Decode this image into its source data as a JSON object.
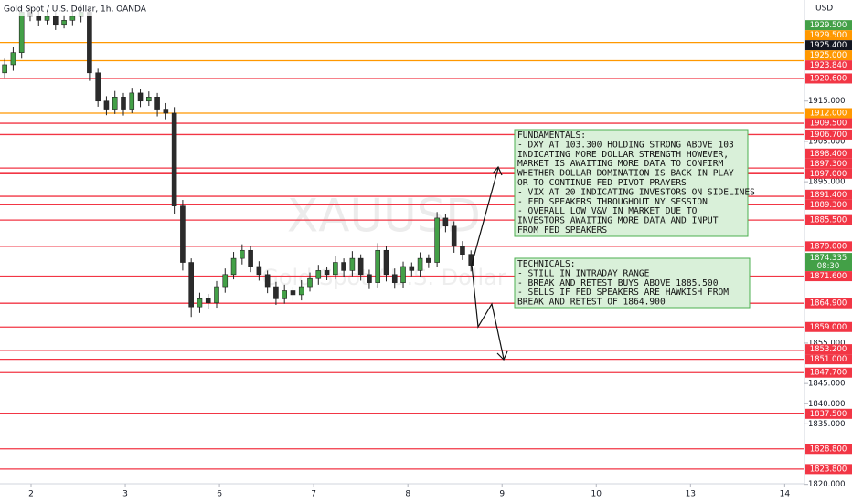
{
  "chart_data": {
    "type": "candlestick",
    "title": "Gold Spot / U.S. Dollar, 1h, OANDA",
    "currency": "USD",
    "watermark": "XAUUSD",
    "watermark_subtitle": "Gold Spot / U.S. Dollar",
    "up_color": "#43a047",
    "down_color": "#2b2b2b",
    "xlim": [
      -0.33,
      8.21
    ],
    "xticks": [
      {
        "value": 0,
        "label": "2"
      },
      {
        "value": 1,
        "label": "3"
      },
      {
        "value": 2,
        "label": "6"
      },
      {
        "value": 3,
        "label": "7"
      },
      {
        "value": 4,
        "label": "8"
      },
      {
        "value": 5,
        "label": "9"
      },
      {
        "value": 6,
        "label": "10"
      },
      {
        "value": 7,
        "label": "13"
      },
      {
        "value": 8,
        "label": "14"
      }
    ],
    "ylim": [
      1820.15,
      1940.05
    ],
    "yticks": [
      {
        "value": 1915,
        "label": "1915.000"
      },
      {
        "value": 1905,
        "label": "1905.000"
      },
      {
        "value": 1895,
        "label": "1895.000"
      },
      {
        "value": 1855,
        "label": "1855.000"
      },
      {
        "value": 1845,
        "label": "1845.000"
      },
      {
        "value": 1840,
        "label": "1840.000"
      },
      {
        "value": 1835,
        "label": "1835.000"
      },
      {
        "value": 1820,
        "label": "1820.000"
      }
    ],
    "x": [
      -0.28,
      -0.19,
      -0.1,
      -0.01,
      0.08,
      0.17,
      0.26,
      0.35,
      0.44,
      0.53,
      0.62,
      0.71,
      0.8,
      0.89,
      0.98,
      1.07,
      1.16,
      1.25,
      1.34,
      1.43,
      1.52,
      1.61,
      1.7,
      1.79,
      1.88,
      1.97,
      2.06,
      2.15,
      2.24,
      2.33,
      2.42,
      2.51,
      2.6,
      2.69,
      2.78,
      2.87,
      2.96,
      3.05,
      3.14,
      3.23,
      3.32,
      3.41,
      3.5,
      3.59,
      3.68,
      3.77,
      3.86,
      3.95,
      4.04,
      4.13,
      4.22,
      4.31,
      4.4,
      4.49,
      4.58,
      4.67
    ],
    "open": [
      1922,
      1924,
      1927,
      1937,
      1936,
      1935,
      1936,
      1934,
      1935,
      1936,
      1937,
      1922,
      1915,
      1913,
      1916,
      1913,
      1917,
      1915,
      1916,
      1913,
      1912,
      1889,
      1875,
      1864,
      1866,
      1865,
      1869,
      1872,
      1876,
      1878,
      1874,
      1872,
      1869,
      1866,
      1868,
      1867,
      1869,
      1871,
      1873,
      1872,
      1875,
      1873,
      1876,
      1872,
      1870,
      1878,
      1872,
      1870,
      1874,
      1873,
      1876,
      1875,
      1886,
      1884,
      1879,
      1877
    ],
    "high": [
      1925.5,
      1928.5,
      1938.5,
      1938.5,
      1937.2,
      1937.5,
      1937,
      1936.4,
      1937.3,
      1939,
      1938,
      1923,
      1916.2,
      1917.5,
      1917,
      1918.3,
      1918,
      1917.4,
      1917,
      1914.5,
      1913.5,
      1890.5,
      1876,
      1867.5,
      1867.2,
      1870.4,
      1873.5,
      1877.6,
      1879.5,
      1879,
      1875.3,
      1873,
      1870.2,
      1869.5,
      1869,
      1870.6,
      1872.5,
      1874.4,
      1874,
      1876.5,
      1876,
      1877.8,
      1877,
      1873.2,
      1879.8,
      1879,
      1873.5,
      1875.2,
      1875,
      1877.5,
      1877,
      1887.5,
      1887,
      1885.2,
      1880.3,
      1878
    ],
    "low": [
      1920.5,
      1922.5,
      1925.5,
      1934.8,
      1933.5,
      1934,
      1932.6,
      1933,
      1933.8,
      1934.5,
      1920,
      1913.6,
      1911.5,
      1911.8,
      1911.4,
      1912,
      1913.5,
      1913.8,
      1911.2,
      1910.5,
      1887,
      1873,
      1861.5,
      1862.5,
      1863.4,
      1863.8,
      1867.5,
      1870.8,
      1874.5,
      1872.6,
      1870.5,
      1867.4,
      1864.5,
      1864.8,
      1865.5,
      1865.6,
      1867.8,
      1869.5,
      1870.6,
      1870.8,
      1871.5,
      1871.6,
      1870.5,
      1868.4,
      1868.6,
      1870.3,
      1868.5,
      1868.8,
      1871.6,
      1871.5,
      1873.6,
      1873.8,
      1882.5,
      1877.4,
      1875.6,
      1872.8
    ],
    "close": [
      1924,
      1927,
      1937,
      1936,
      1935,
      1936,
      1934,
      1935,
      1936,
      1937,
      1922,
      1915,
      1913,
      1916,
      1913,
      1917,
      1915,
      1916,
      1913,
      1912,
      1889,
      1875,
      1864,
      1866,
      1865,
      1869,
      1872,
      1876,
      1878,
      1874,
      1872,
      1869,
      1866,
      1868,
      1867,
      1869,
      1871,
      1873,
      1872,
      1875,
      1873,
      1876,
      1872,
      1870,
      1878,
      1872,
      1870,
      1874,
      1873,
      1876,
      1875,
      1886,
      1884,
      1879,
      1877,
      1874.3
    ],
    "price_labels": [
      {
        "value": 1929.5,
        "label": "1929.500",
        "color": "#43a047",
        "line": false
      },
      {
        "value": 1929.5,
        "label": "1929.500",
        "color": "#ff9800",
        "line": true
      },
      {
        "value": 1925.4,
        "label": "1925.400",
        "color": "#131722",
        "line": false
      },
      {
        "value": 1925,
        "label": "1925.000",
        "color": "#ff9800",
        "line": true
      },
      {
        "value": 1923.84,
        "label": "1923.840",
        "color": "#f23645",
        "line": false
      },
      {
        "value": 1920.6,
        "label": "1920.600",
        "color": "#f23645",
        "line": true
      },
      {
        "value": 1912,
        "label": "1912.000",
        "color": "#ff9800",
        "line": true
      },
      {
        "value": 1909.5,
        "label": "1909.500",
        "color": "#f23645",
        "line": true
      },
      {
        "value": 1906.7,
        "label": "1906.700",
        "color": "#f23645",
        "line": true
      },
      {
        "value": 1898.4,
        "label": "1898.400",
        "color": "#f23645",
        "line": true
      },
      {
        "value": 1897.3,
        "label": "1897.300",
        "color": "#f23645",
        "line": true
      },
      {
        "value": 1897,
        "label": "1897.000",
        "color": "#f23645",
        "line": true
      },
      {
        "value": 1891.4,
        "label": "1891.400",
        "color": "#f23645",
        "line": true
      },
      {
        "value": 1889.3,
        "label": "1889.300",
        "color": "#f23645",
        "line": true
      },
      {
        "value": 1885.5,
        "label": "1885.500",
        "color": "#f23645",
        "line": true
      },
      {
        "value": 1879,
        "label": "1879.000",
        "color": "#f23645",
        "line": true
      },
      {
        "value": 1874.335,
        "label": "1874.335",
        "time": "08:30",
        "color": "#43a047",
        "line": false
      },
      {
        "value": 1871.6,
        "label": "1871.600",
        "color": "#f23645",
        "line": true
      },
      {
        "value": 1864.9,
        "label": "1864.900",
        "color": "#f23645",
        "line": true
      },
      {
        "value": 1859,
        "label": "1859.000",
        "color": "#f23645",
        "line": true
      },
      {
        "value": 1853.2,
        "label": "1853.200",
        "color": "#f23645",
        "line": true
      },
      {
        "value": 1851,
        "label": "1851.000",
        "color": "#f23645",
        "line": true
      },
      {
        "value": 1847.7,
        "label": "1847.700",
        "color": "#f23645",
        "line": true
      },
      {
        "value": 1837.5,
        "label": "1837.500",
        "color": "#f23645",
        "line": true
      },
      {
        "value": 1828.8,
        "label": "1828.800",
        "color": "#f23645",
        "line": true
      },
      {
        "value": 1823.8,
        "label": "1823.800",
        "color": "#f23645",
        "line": true
      }
    ],
    "annotations": {
      "fundamentals": [
        "FUNDAMENTALS:",
        "- DXY AT 103.300 HOLDING STRONG ABOVE 103",
        "INDICATING MORE DOLLAR STRENGTH HOWEVER,",
        "MARKET IS AWAITING MORE DATA TO CONFIRM",
        "WHETHER DOLLAR DOMINATION IS BACK IN PLAY",
        "OR TO CONTINUE FED PIVOT PRAYERS",
        "- VIX AT 20 INDICATING INVESTORS ON SIDELINES",
        "- FED SPEAKERS THROUGHOUT NY SESSION",
        "- OVERALL LOW V&V IN MARKET DUE TO",
        "INVESTORS AWAITING MORE DATA AND INPUT",
        "FROM FED SPEAKERS"
      ],
      "technicals": [
        "TECHNICALS:",
        "- STILL IN INTRADAY RANGE",
        "- BREAK AND RETEST BUYS ABOVE 1885.500",
        "- SELLS IF FED SPEAKERS ARE HAWKISH FROM",
        "BREAK AND RETEST OF 1864.900"
      ]
    }
  }
}
